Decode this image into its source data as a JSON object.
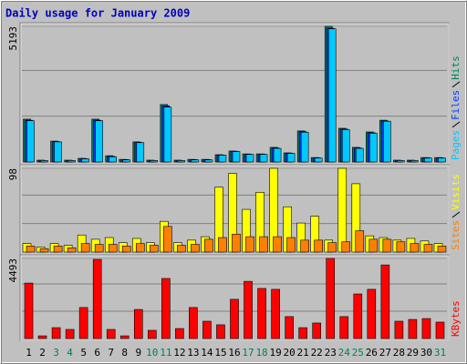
{
  "chart_data": [
    {
      "type": "bar",
      "title": "Daily usage for January 2009",
      "ylim": [
        0,
        5193
      ],
      "yticks": [
        5193
      ],
      "series": [
        {
          "name": "Hits",
          "color": "#00805C",
          "values": [
            1640,
            70,
            800,
            70,
            140,
            1640,
            240,
            100,
            770,
            70,
            2200,
            70,
            100,
            100,
            280,
            420,
            310,
            310,
            560,
            350,
            1190,
            170,
            5193,
            1290,
            560,
            1150,
            1600,
            70,
            70,
            170,
            170
          ]
        },
        {
          "name": "Files",
          "color": "#0040FF",
          "values": [
            1600,
            60,
            780,
            60,
            130,
            1600,
            220,
            90,
            750,
            60,
            2150,
            60,
            90,
            90,
            270,
            410,
            300,
            300,
            540,
            340,
            1160,
            160,
            5120,
            1260,
            540,
            1120,
            1570,
            60,
            60,
            160,
            160
          ]
        },
        {
          "name": "Pages",
          "color": "#00C8FF",
          "values": [
            1580,
            55,
            770,
            55,
            120,
            1580,
            200,
            80,
            740,
            55,
            2100,
            55,
            80,
            80,
            260,
            400,
            290,
            290,
            520,
            330,
            1140,
            150,
            5100,
            1240,
            520,
            1100,
            1560,
            55,
            55,
            150,
            150
          ]
        }
      ]
    },
    {
      "type": "bar",
      "ylim": [
        0,
        98
      ],
      "yticks": [
        98
      ],
      "series": [
        {
          "name": "Visits",
          "color": "#FFFF00",
          "values": [
            10,
            6,
            10,
            8,
            20,
            15,
            17,
            11,
            16,
            11,
            36,
            11,
            14,
            18,
            76,
            92,
            50,
            70,
            98,
            53,
            34,
            42,
            14,
            98,
            80,
            19,
            17,
            14,
            16,
            13,
            10
          ]
        },
        {
          "name": "Sites",
          "color": "#FF8000",
          "values": [
            7,
            4,
            7,
            5,
            10,
            9,
            9,
            7,
            10,
            8,
            30,
            8,
            9,
            15,
            17,
            21,
            18,
            18,
            18,
            17,
            14,
            14,
            11,
            12,
            25,
            15,
            15,
            12,
            10,
            9,
            7
          ]
        }
      ]
    },
    {
      "type": "bar",
      "ylim": [
        0,
        4493
      ],
      "yticks": [
        4493
      ],
      "categories": [
        "1",
        "2",
        "3",
        "4",
        "5",
        "6",
        "7",
        "8",
        "9",
        "10",
        "11",
        "12",
        "13",
        "14",
        "15",
        "16",
        "17",
        "18",
        "19",
        "20",
        "21",
        "22",
        "23",
        "24",
        "25",
        "26",
        "27",
        "28",
        "29",
        "30",
        "31"
      ],
      "category_colors": [
        "#000000",
        "#000000",
        "#00805C",
        "#00805C",
        "#000000",
        "#000000",
        "#000000",
        "#000000",
        "#000000",
        "#00805C",
        "#00805C",
        "#000000",
        "#000000",
        "#000000",
        "#000000",
        "#000000",
        "#00805C",
        "#00805C",
        "#000000",
        "#000000",
        "#000000",
        "#000000",
        "#000000",
        "#00805C",
        "#00805C",
        "#000000",
        "#000000",
        "#000000",
        "#000000",
        "#000000",
        "#00805C"
      ],
      "series": [
        {
          "name": "KBytes",
          "color": "#FF0000",
          "values": [
            3110,
            150,
            610,
            510,
            1740,
            4440,
            510,
            150,
            1630,
            460,
            3370,
            560,
            1740,
            970,
            770,
            2200,
            3210,
            2810,
            2760,
            1230,
            610,
            870,
            4493,
            1230,
            2500,
            2760,
            4130,
            970,
            1070,
            1120,
            920
          ]
        }
      ]
    }
  ]
}
